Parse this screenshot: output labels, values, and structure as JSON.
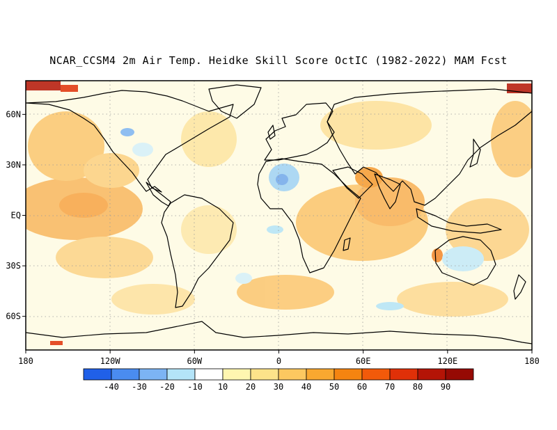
{
  "title": "NCAR_CCSM4 2m Air Temp. Heidke Skill Score OctIC (1982-2022) MAM Fcst",
  "map": {
    "projection": "cylindrical-equidistant",
    "lon_range": [
      -180,
      180
    ],
    "lat_range": [
      -80,
      80
    ],
    "lon_ticks": [
      {
        "value": -180,
        "label": "180"
      },
      {
        "value": -120,
        "label": "120W"
      },
      {
        "value": -60,
        "label": "60W"
      },
      {
        "value": 0,
        "label": "0"
      },
      {
        "value": 60,
        "label": "60E"
      },
      {
        "value": 120,
        "label": "120E"
      },
      {
        "value": 180,
        "label": "180"
      }
    ],
    "lat_ticks": [
      {
        "value": 60,
        "label": "60N"
      },
      {
        "value": 30,
        "label": "30N"
      },
      {
        "value": 0,
        "label": "EQ"
      },
      {
        "value": -30,
        "label": "30S"
      },
      {
        "value": -60,
        "label": "60S"
      }
    ],
    "grid": "dotted"
  },
  "colorbar": {
    "labels": [
      "-40",
      "-30",
      "-20",
      "-10",
      "10",
      "20",
      "30",
      "40",
      "50",
      "60",
      "70",
      "80",
      "90"
    ],
    "colors": [
      "#2060e8",
      "#4a8cf0",
      "#7cb4f4",
      "#b4e4f8",
      "#ffffff",
      "#fff6b0",
      "#fde38a",
      "#fcc860",
      "#f9a830",
      "#f58410",
      "#f25a0a",
      "#e03008",
      "#b41406",
      "#960a04"
    ]
  }
}
